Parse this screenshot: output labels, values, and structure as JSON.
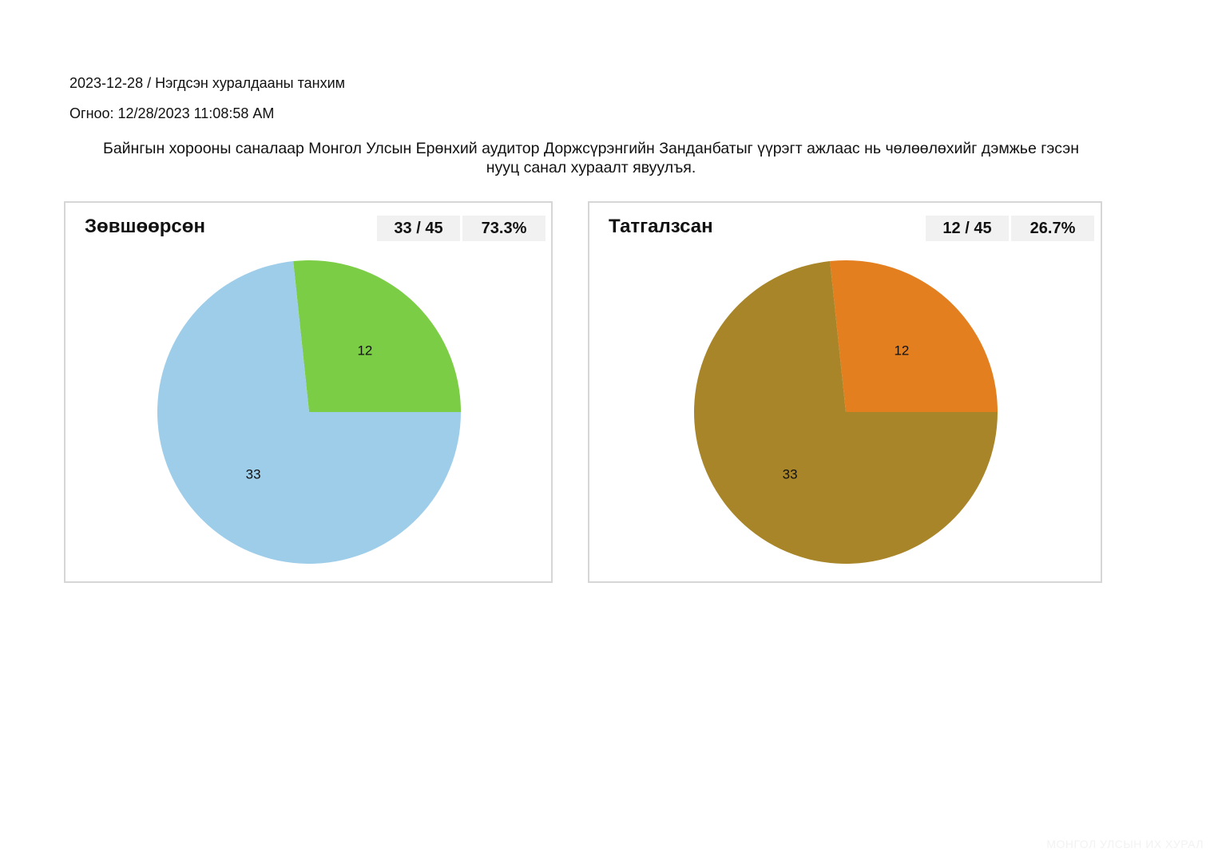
{
  "header": {
    "session": "2023-12-28 / Нэгдсэн хуралдааны танхим",
    "date": "Огноо: 12/28/2023 11:08:58 AM",
    "question": "Байнгын хорооны саналаар Монгол Улсын Ерөнхий аудитор Доржсүрэнгийн Занданбатыг үүрэгт ажлаас нь чөлөөлөхийг дэмжье гэсэн нууц санал хураалт явуулъя."
  },
  "panels": [
    {
      "title": "Зөвшөөрсөн",
      "count_text": "33 / 45",
      "percent_text": "73.3%"
    },
    {
      "title": "Татгалзсан",
      "count_text": "12 / 45",
      "percent_text": "26.7%"
    }
  ],
  "chart_data": [
    {
      "type": "pie",
      "title": "Зөвшөөрсөн",
      "slices": [
        {
          "value": 12,
          "label": "12",
          "color": "#7ccd46"
        },
        {
          "value": 33,
          "label": "33",
          "color": "#9ecdea"
        }
      ]
    },
    {
      "type": "pie",
      "title": "Татгалзсан",
      "slices": [
        {
          "value": 12,
          "label": "12",
          "color": "#e47f20"
        },
        {
          "value": 33,
          "label": "33",
          "color": "#a88528"
        }
      ]
    }
  ],
  "footer": {
    "watermark": "МОНГОЛ УЛСЫН ИХ ХУРАЛ"
  }
}
